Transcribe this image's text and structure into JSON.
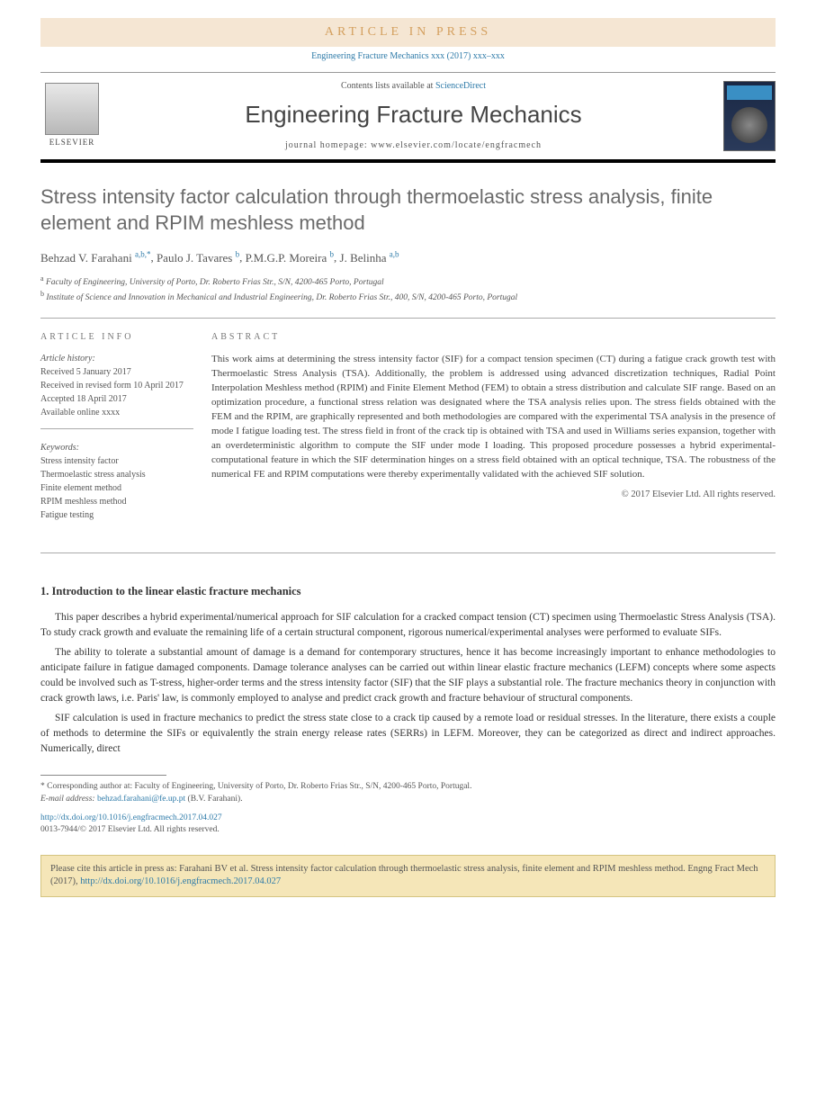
{
  "banner": {
    "articleInPress": "ARTICLE IN PRESS",
    "citationLine": "Engineering Fracture Mechanics xxx (2017) xxx–xxx"
  },
  "header": {
    "elsevierText": "ELSEVIER",
    "contentsPrefix": "Contents lists available at ",
    "contentsLink": "ScienceDirect",
    "journalTitle": "Engineering Fracture Mechanics",
    "homepageLabel": "journal homepage: www.elsevier.com/locate/engfracmech"
  },
  "article": {
    "title": "Stress intensity factor calculation through thermoelastic stress analysis, finite element and RPIM meshless method",
    "authors": [
      {
        "name": "Behzad V. Farahani",
        "aff": "a,b,",
        "corr": "*"
      },
      {
        "name": "Paulo J. Tavares",
        "aff": "b",
        "corr": ""
      },
      {
        "name": "P.M.G.P. Moreira",
        "aff": "b",
        "corr": ""
      },
      {
        "name": "J. Belinha",
        "aff": "a,b",
        "corr": ""
      }
    ],
    "affiliations": [
      {
        "sup": "a",
        "text": "Faculty of Engineering, University of Porto, Dr. Roberto Frias Str., S/N, 4200-465 Porto, Portugal"
      },
      {
        "sup": "b",
        "text": "Institute of Science and Innovation in Mechanical and Industrial Engineering, Dr. Roberto Frias Str., 400, S/N, 4200-465 Porto, Portugal"
      }
    ]
  },
  "info": {
    "headingInfo": "ARTICLE INFO",
    "historyLabel": "Article history:",
    "history": [
      "Received 5 January 2017",
      "Received in revised form 10 April 2017",
      "Accepted 18 April 2017",
      "Available online xxxx"
    ],
    "keywordsLabel": "Keywords:",
    "keywords": [
      "Stress intensity factor",
      "Thermoelastic stress analysis",
      "Finite element method",
      "RPIM meshless method",
      "Fatigue testing"
    ]
  },
  "abstract": {
    "heading": "ABSTRACT",
    "text": "This work aims at determining the stress intensity factor (SIF) for a compact tension specimen (CT) during a fatigue crack growth test with Thermoelastic Stress Analysis (TSA). Additionally, the problem is addressed using advanced discretization techniques, Radial Point Interpolation Meshless method (RPIM) and Finite Element Method (FEM) to obtain a stress distribution and calculate SIF range. Based on an optimization procedure, a functional stress relation was designated where the TSA analysis relies upon. The stress fields obtained with the FEM and the RPIM, are graphically represented and both methodologies are compared with the experimental TSA analysis in the presence of mode I fatigue loading test. The stress field in front of the crack tip is obtained with TSA and used in Williams series expansion, together with an overdeterministic algorithm to compute the SIF under mode I loading. This proposed procedure possesses a hybrid experimental-computational feature in which the SIF determination hinges on a stress field obtained with an optical technique, TSA. The robustness of the numerical FE and RPIM computations were thereby experimentally validated with the achieved SIF solution.",
    "copyright": "© 2017 Elsevier Ltd. All rights reserved."
  },
  "section1": {
    "heading": "1. Introduction to the linear elastic fracture mechanics",
    "paras": [
      "This paper describes a hybrid experimental/numerical approach for SIF calculation for a cracked compact tension (CT) specimen using Thermoelastic Stress Analysis (TSA). To study crack growth and evaluate the remaining life of a certain structural component, rigorous numerical/experimental analyses were performed to evaluate SIFs.",
      "The ability to tolerate a substantial amount of damage is a demand for contemporary structures, hence it has become increasingly important to enhance methodologies to anticipate failure in fatigue damaged components. Damage tolerance analyses can be carried out within linear elastic fracture mechanics (LEFM) concepts where some aspects could be involved such as T-stress, higher-order terms and the stress intensity factor (SIF) that the SIF plays a substantial role. The fracture mechanics theory in conjunction with crack growth laws, i.e. Paris' law, is commonly employed to analyse and predict crack growth and fracture behaviour of structural components.",
      "SIF calculation is used in fracture mechanics to predict the stress state close to a crack tip caused by a remote load or residual stresses. In the literature, there exists a couple of methods to determine the SIFs or equivalently the strain energy release rates (SERRs) in LEFM. Moreover, they can be categorized as direct and indirect approaches. Numerically, direct"
    ]
  },
  "footnote": {
    "corrSymbol": "*",
    "corrText": "Corresponding author at: Faculty of Engineering, University of Porto, Dr. Roberto Frias Str., S/N, 4200-465 Porto, Portugal.",
    "emailLabel": "E-mail address: ",
    "email": "behzad.farahani@fe.up.pt",
    "emailSuffix": " (B.V. Farahani)."
  },
  "doi": {
    "link": "http://dx.doi.org/10.1016/j.engfracmech.2017.04.027",
    "issn": "0013-7944/© 2017 Elsevier Ltd. All rights reserved."
  },
  "citationBox": {
    "text": "Please cite this article in press as: Farahani BV et al. Stress intensity factor calculation through thermoelastic stress analysis, finite element and RPIM meshless method. Engng Fract Mech (2017), ",
    "link": "http://dx.doi.org/10.1016/j.engfracmech.2017.04.027"
  },
  "colors": {
    "link": "#2d7aa8",
    "bannerBg": "#f5e6d3",
    "bannerText": "#d4a05f",
    "citeBoxBg": "#f5e6b8",
    "citeBoxBorder": "#d4c480"
  }
}
